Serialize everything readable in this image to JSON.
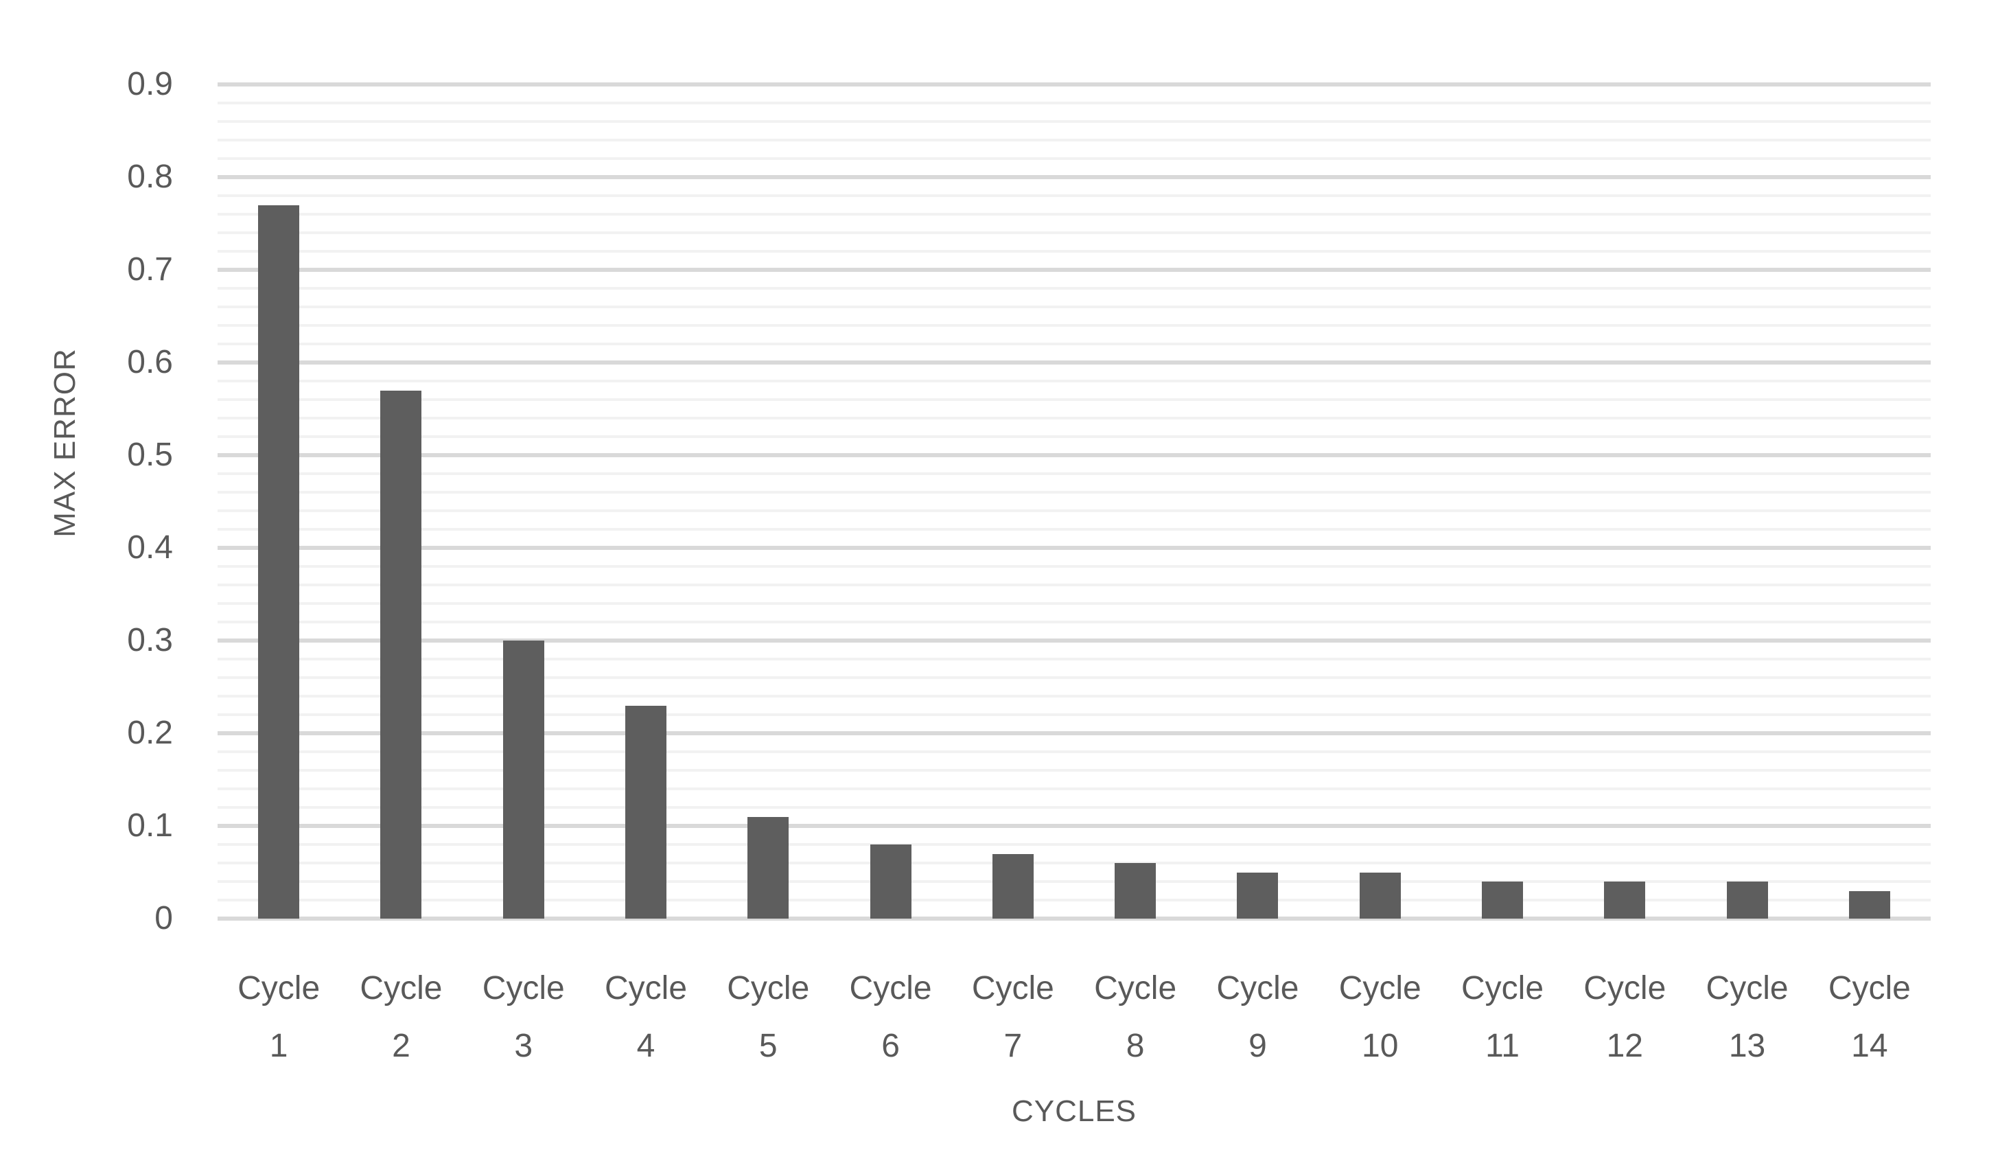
{
  "chart_data": {
    "type": "bar",
    "title": "",
    "xlabel": "CYCLES",
    "ylabel": "MAX ERROR",
    "categories": [
      "Cycle 1",
      "Cycle 2",
      "Cycle 3",
      "Cycle 4",
      "Cycle 5",
      "Cycle 6",
      "Cycle 7",
      "Cycle 8",
      "Cycle 9",
      "Cycle 10",
      "Cycle 11",
      "Cycle 12",
      "Cycle 13",
      "Cycle 14"
    ],
    "values": [
      0.77,
      0.57,
      0.3,
      0.23,
      0.11,
      0.08,
      0.07,
      0.06,
      0.05,
      0.05,
      0.04,
      0.04,
      0.04,
      0.03
    ],
    "ylim": [
      0,
      0.9
    ],
    "y_major_step": 0.1,
    "y_minor_step": 0.02,
    "y_tick_labels": [
      "0",
      "0.1",
      "0.2",
      "0.3",
      "0.4",
      "0.5",
      "0.6",
      "0.7",
      "0.8",
      "0.9"
    ],
    "grid": "horizontal major and minor gridlines",
    "legend": false,
    "colors": {
      "bar": "#5e5e5e",
      "label_text": "#595959",
      "major_gridline": "#d9d9d9",
      "minor_gridline": "#f2f2f2",
      "background": "#ffffff"
    }
  }
}
